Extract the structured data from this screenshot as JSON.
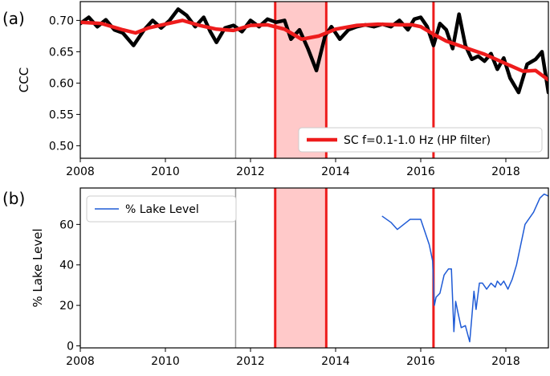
{
  "chart_data": [
    {
      "panel_label": "(a)",
      "type": "line",
      "xlim": [
        2008,
        2019
      ],
      "ylim": [
        0.48,
        0.73
      ],
      "xticks": [
        2008,
        2010,
        2012,
        2014,
        2016,
        2018
      ],
      "xtick_labels": [
        "2008",
        "2010",
        "2012",
        "2014",
        "2016",
        "2018"
      ],
      "yticks": [
        0.5,
        0.55,
        0.6,
        0.65,
        0.7
      ],
      "ytick_labels": [
        "0.50",
        "0.55",
        "0.60",
        "0.65",
        "0.70"
      ],
      "ylabel": "CCC",
      "xlabel": "",
      "legend_position": "lower-right",
      "series": [
        {
          "name": "",
          "color": "#000000",
          "x": [
            2008.0,
            2008.2,
            2008.4,
            2008.6,
            2008.8,
            2009.0,
            2009.25,
            2009.5,
            2009.7,
            2009.9,
            2010.1,
            2010.3,
            2010.5,
            2010.7,
            2010.9,
            2011.05,
            2011.2,
            2011.4,
            2011.6,
            2011.8,
            2012.0,
            2012.2,
            2012.4,
            2012.6,
            2012.8,
            2012.95,
            2013.15,
            2013.35,
            2013.55,
            2013.75,
            2013.9,
            2014.1,
            2014.3,
            2014.5,
            2014.7,
            2014.9,
            2015.1,
            2015.3,
            2015.5,
            2015.7,
            2015.85,
            2016.0,
            2016.15,
            2016.3,
            2016.45,
            2016.6,
            2016.75,
            2016.9,
            2017.05,
            2017.2,
            2017.35,
            2017.5,
            2017.65,
            2017.8,
            2017.95,
            2018.1,
            2018.3,
            2018.5,
            2018.7,
            2018.85,
            2019.0
          ],
          "y": [
            0.695,
            0.705,
            0.69,
            0.701,
            0.685,
            0.68,
            0.66,
            0.685,
            0.7,
            0.688,
            0.7,
            0.718,
            0.708,
            0.69,
            0.705,
            0.683,
            0.665,
            0.688,
            0.692,
            0.682,
            0.7,
            0.69,
            0.702,
            0.697,
            0.7,
            0.67,
            0.685,
            0.655,
            0.62,
            0.675,
            0.69,
            0.67,
            0.685,
            0.69,
            0.693,
            0.69,
            0.694,
            0.69,
            0.7,
            0.685,
            0.702,
            0.705,
            0.69,
            0.66,
            0.695,
            0.685,
            0.655,
            0.71,
            0.66,
            0.638,
            0.643,
            0.635,
            0.647,
            0.622,
            0.64,
            0.608,
            0.585,
            0.63,
            0.638,
            0.65,
            0.585
          ]
        },
        {
          "name": "SC f=0.1-1.0 Hz (HP filter)",
          "color": "#ee1c1c",
          "x": [
            2008.0,
            2008.5,
            2009.0,
            2009.3,
            2009.6,
            2010.0,
            2010.4,
            2010.8,
            2011.2,
            2011.6,
            2012.0,
            2012.4,
            2012.8,
            2013.2,
            2013.6,
            2014.0,
            2014.5,
            2015.0,
            2015.5,
            2015.8,
            2016.0,
            2016.3,
            2016.6,
            2016.9,
            2017.2,
            2017.5,
            2017.8,
            2018.1,
            2018.4,
            2018.7,
            2019.0
          ],
          "y": [
            0.697,
            0.695,
            0.685,
            0.68,
            0.688,
            0.694,
            0.7,
            0.692,
            0.686,
            0.684,
            0.692,
            0.693,
            0.686,
            0.67,
            0.675,
            0.686,
            0.692,
            0.694,
            0.693,
            0.693,
            0.69,
            0.678,
            0.667,
            0.66,
            0.653,
            0.646,
            0.637,
            0.628,
            0.619,
            0.62,
            0.605
          ]
        }
      ],
      "vlines": [
        {
          "x": 2011.65,
          "color": "#999999"
        },
        {
          "x": 2012.58,
          "color": "#ee1c1c"
        },
        {
          "x": 2013.78,
          "color": "#ee1c1c"
        },
        {
          "x": 2016.3,
          "color": "#ee1c1c"
        }
      ],
      "shaded_span": {
        "x0": 2012.58,
        "x1": 2013.78,
        "color": "#ffc9c9"
      }
    },
    {
      "panel_label": "(b)",
      "type": "line",
      "xlim": [
        2008,
        2019
      ],
      "ylim": [
        -1,
        78
      ],
      "xticks": [
        2008,
        2010,
        2012,
        2014,
        2016,
        2018
      ],
      "xtick_labels": [
        "2008",
        "2010",
        "2012",
        "2014",
        "2016",
        "2018"
      ],
      "yticks": [
        0,
        20,
        40,
        60
      ],
      "ytick_labels": [
        "0",
        "20",
        "40",
        "60"
      ],
      "ylabel": "% Lake Level",
      "xlabel": "",
      "legend_position": "upper-left",
      "series": [
        {
          "name": "% Lake Level",
          "color": "#1f5bd6",
          "x": [
            2015.1,
            2015.3,
            2015.45,
            2015.6,
            2015.75,
            2016.0,
            2016.2,
            2016.28,
            2016.32,
            2016.36,
            2016.45,
            2016.55,
            2016.65,
            2016.72,
            2016.78,
            2016.82,
            2016.88,
            2016.95,
            2017.05,
            2017.15,
            2017.2,
            2017.25,
            2017.3,
            2017.38,
            2017.45,
            2017.55,
            2017.65,
            2017.75,
            2017.8,
            2017.88,
            2017.95,
            2018.05,
            2018.15,
            2018.25,
            2018.45,
            2018.65,
            2018.8,
            2018.9,
            2019.0
          ],
          "y": [
            64.0,
            61.0,
            57.5,
            60.0,
            62.5,
            62.5,
            50.0,
            42.0,
            20.0,
            24.0,
            26.0,
            35.0,
            38.0,
            38.0,
            7.0,
            22.0,
            16.0,
            9.0,
            10.0,
            2.0,
            14.0,
            27.0,
            18.0,
            31.0,
            31.0,
            28.0,
            31.0,
            29.0,
            32.0,
            30.0,
            32.0,
            28.0,
            33.0,
            40.0,
            60.0,
            66.0,
            73.0,
            75.0,
            74.0
          ]
        }
      ],
      "vlines": [
        {
          "x": 2011.65,
          "color": "#999999"
        },
        {
          "x": 2012.58,
          "color": "#ee1c1c"
        },
        {
          "x": 2013.78,
          "color": "#ee1c1c"
        },
        {
          "x": 2016.3,
          "color": "#ee1c1c"
        }
      ],
      "shaded_span": {
        "x0": 2012.58,
        "x1": 2013.78,
        "color": "#ffc9c9"
      }
    }
  ]
}
